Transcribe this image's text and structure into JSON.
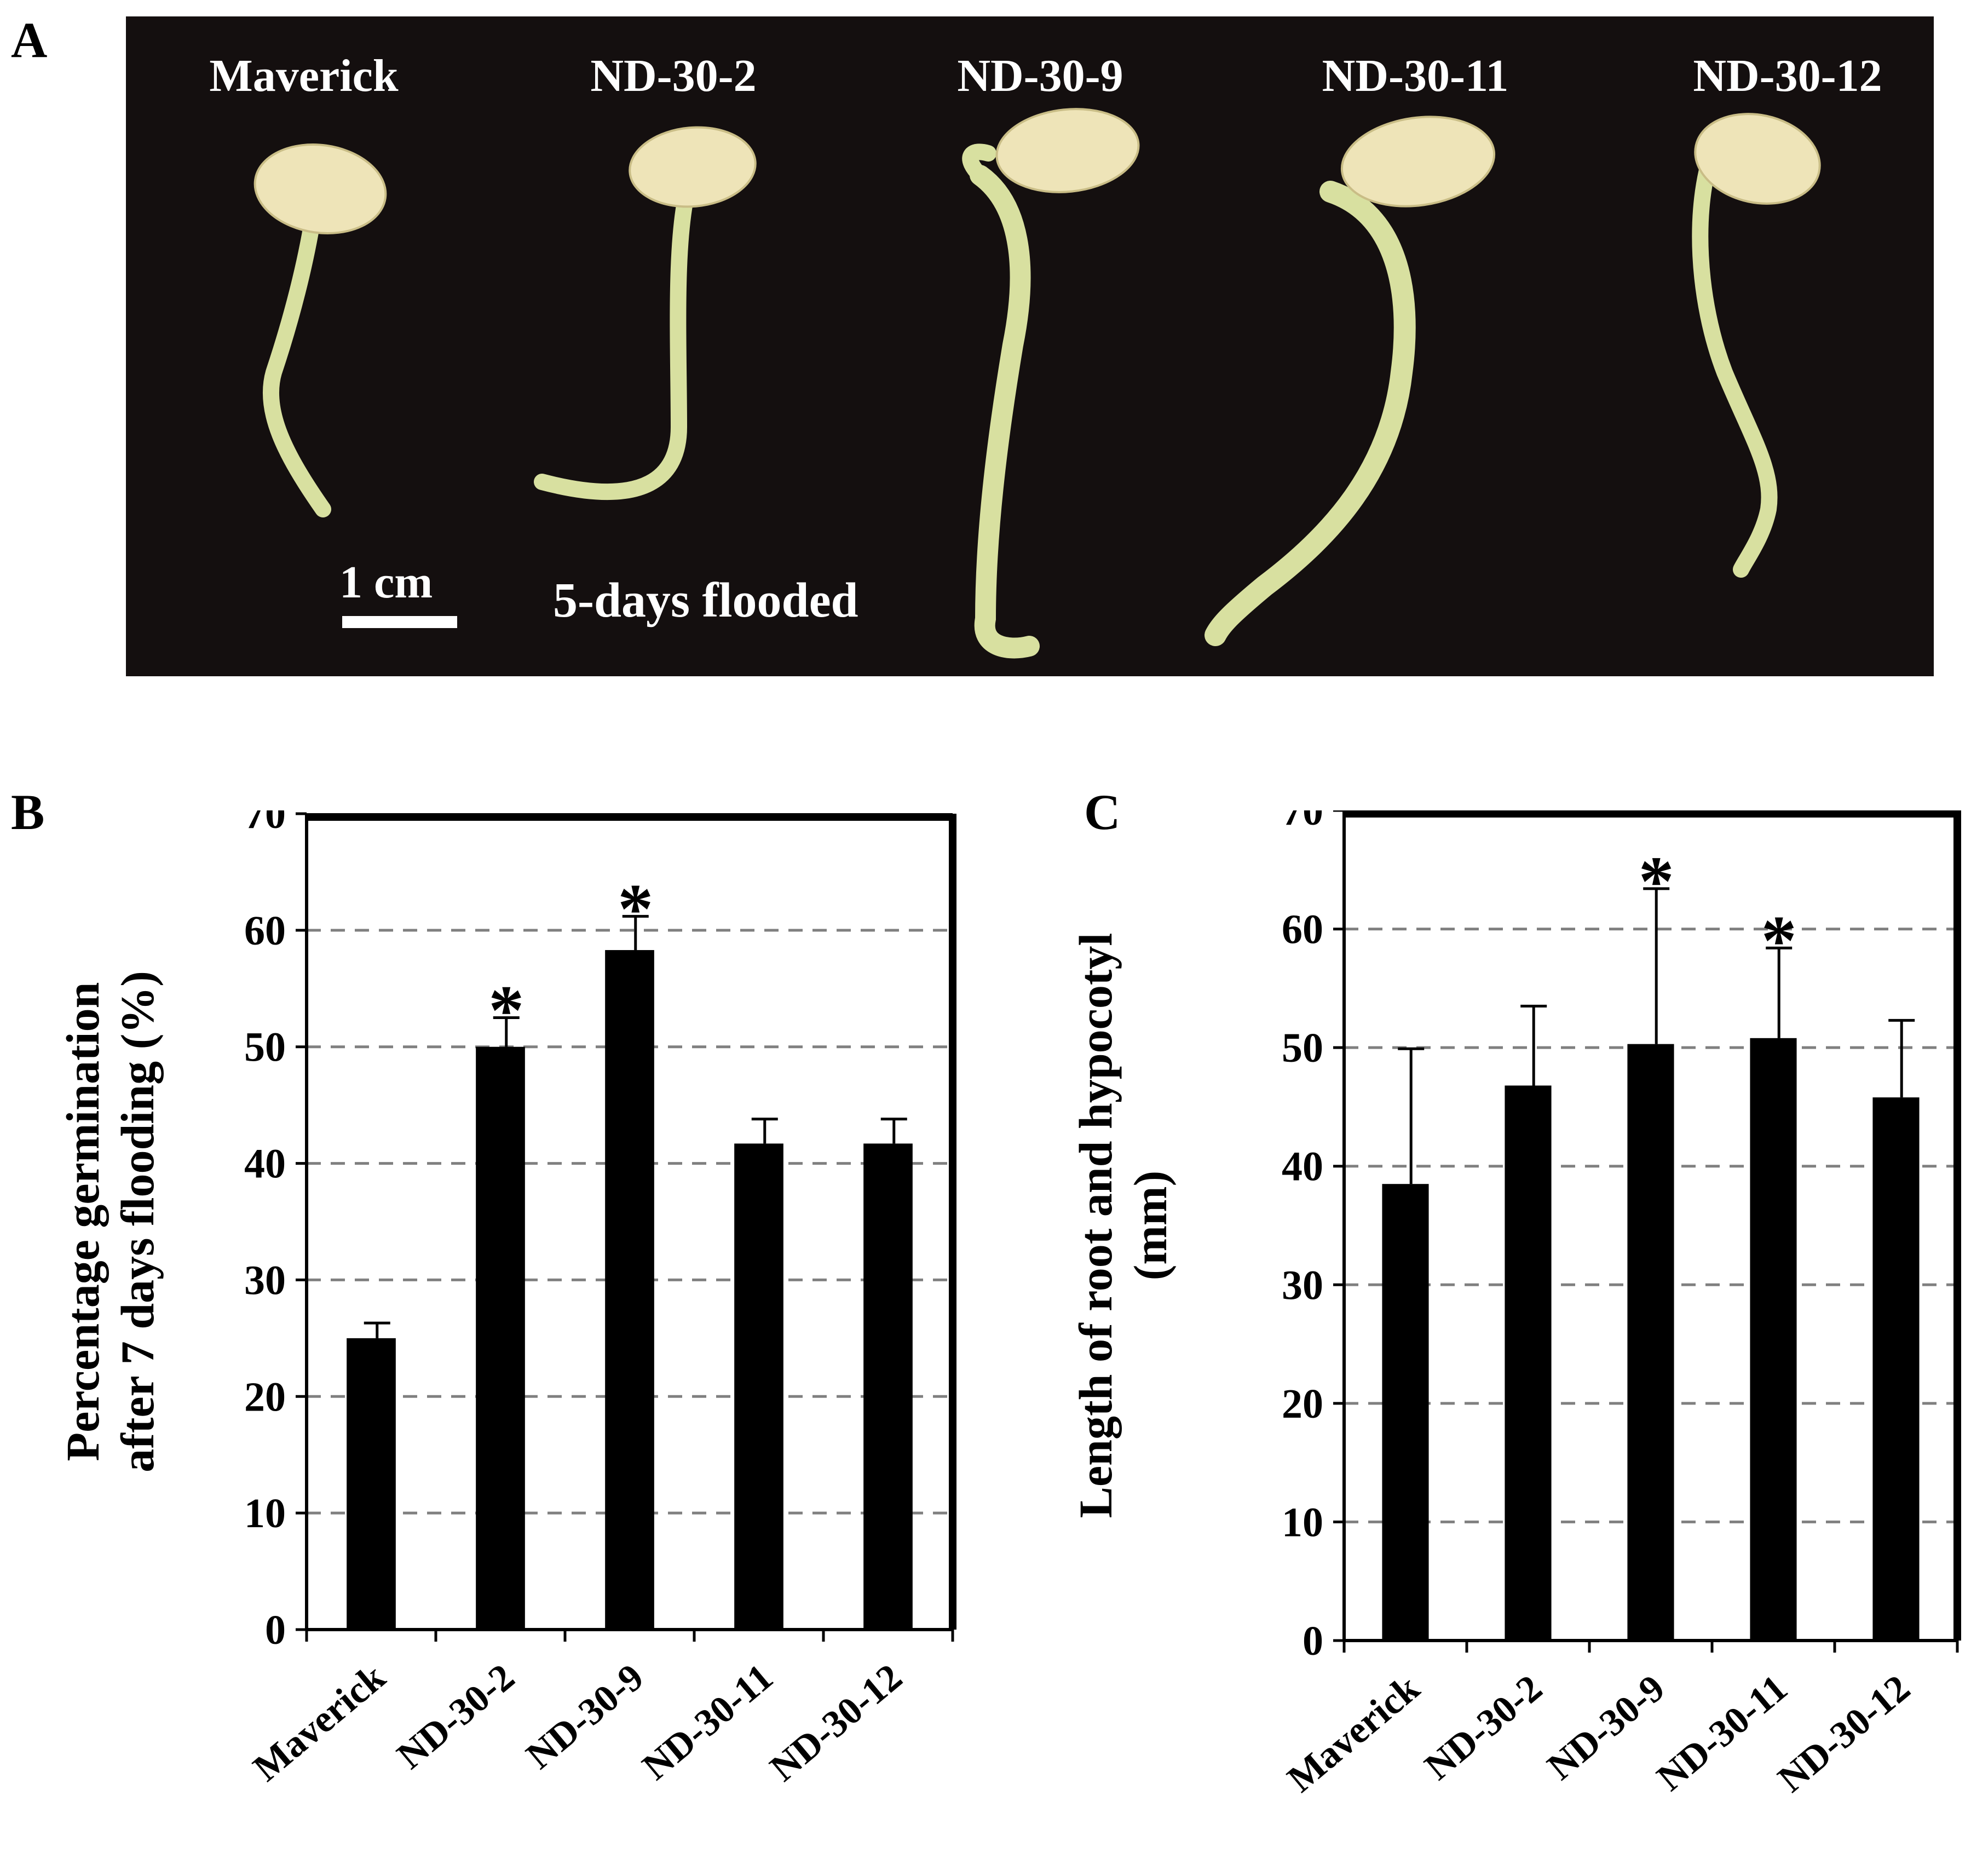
{
  "panels": {
    "a": {
      "letter": "A",
      "samples": [
        "Maverick",
        "ND-30-2",
        "ND-30-9",
        "ND-30-11",
        "ND-30-12"
      ],
      "scale_label": "1 cm",
      "condition_label": "5-days flooded",
      "colors": {
        "background": "#140f0f",
        "seed": "#eee4b8",
        "stem": "#d8e0a0",
        "text": "#ffffff"
      }
    },
    "b": {
      "letter": "B"
    },
    "c": {
      "letter": "C"
    }
  },
  "chart_data": [
    {
      "type": "bar",
      "panel": "B",
      "categories": [
        "Maverick",
        "ND-30-2",
        "ND-30-9",
        "ND-30-11",
        "ND-30-12"
      ],
      "values": [
        25,
        50,
        58.3,
        41.7,
        41.7
      ],
      "errors": [
        1.3,
        2.5,
        2.9,
        2.1,
        2.1
      ],
      "significant": [
        false,
        true,
        true,
        false,
        false
      ],
      "significance_marker": "*",
      "ylabel": [
        "Percentage germination",
        "after 7 days flooding (%)"
      ],
      "ylim": [
        0,
        70
      ],
      "yticks": [
        0,
        10,
        20,
        30,
        40,
        50,
        60,
        70
      ],
      "grid": true,
      "bar_color": "#000000",
      "grid_color": "#808080"
    },
    {
      "type": "bar",
      "panel": "C",
      "categories": [
        "Maverick",
        "ND-30-2",
        "ND-30-9",
        "ND-30-11",
        "ND-30-12"
      ],
      "values": [
        38.5,
        46.8,
        50.3,
        50.8,
        45.8
      ],
      "errors": [
        11.4,
        6.7,
        13.1,
        7.6,
        6.5
      ],
      "significant": [
        false,
        false,
        true,
        true,
        false
      ],
      "significance_marker": "*",
      "ylabel": [
        "Length of root and hypocotyl",
        "(mm)"
      ],
      "ylim": [
        0,
        70
      ],
      "yticks": [
        0,
        10,
        20,
        30,
        40,
        50,
        60,
        70
      ],
      "grid": true,
      "bar_color": "#000000",
      "grid_color": "#808080"
    }
  ]
}
